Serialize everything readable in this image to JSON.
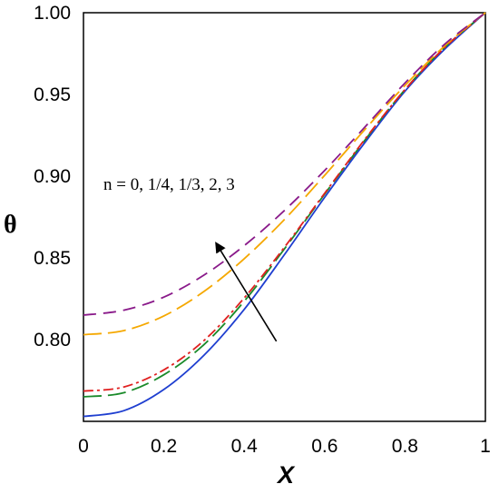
{
  "chart_data": {
    "type": "line",
    "title": "",
    "xlabel": "X",
    "ylabel": "θ",
    "xlim": [
      0,
      1
    ],
    "ylim": [
      0.75,
      1.0
    ],
    "x_ticks": [
      "0",
      "0.2",
      "0.4",
      "0.6",
      "0.8",
      "1"
    ],
    "y_ticks": [
      "0.80",
      "0.85",
      "0.90",
      "0.95",
      "1.00"
    ],
    "grid": false,
    "legend": "none",
    "annotation": {
      "text": "n = 0, 1/4, 1/3, 2, 3",
      "arrow_from": [
        0.48,
        0.799
      ],
      "arrow_to": [
        0.33,
        0.859
      ]
    },
    "series": [
      {
        "color": "#1f3fd0",
        "dash": "solid",
        "x": [
          0,
          0.1,
          0.2,
          0.3,
          0.4,
          0.5,
          0.6,
          0.7,
          0.8,
          0.9,
          1.0
        ],
        "y": [
          0.753,
          0.7565,
          0.7695,
          0.7905,
          0.8185,
          0.852,
          0.887,
          0.9205,
          0.952,
          0.978,
          1.0
        ]
      },
      {
        "color": "#1a8a2a",
        "dash": "long-dash",
        "x": [
          0,
          0.1,
          0.2,
          0.3,
          0.4,
          0.5,
          0.6,
          0.7,
          0.8,
          0.9,
          1.0
        ],
        "y": [
          0.765,
          0.7675,
          0.7785,
          0.797,
          0.8235,
          0.8555,
          0.889,
          0.922,
          0.953,
          0.979,
          1.0
        ]
      },
      {
        "color": "#e02020",
        "dash": "dash-dot",
        "x": [
          0,
          0.1,
          0.2,
          0.3,
          0.4,
          0.5,
          0.6,
          0.7,
          0.8,
          0.9,
          1.0
        ],
        "y": [
          0.7685,
          0.771,
          0.7815,
          0.7995,
          0.8255,
          0.8565,
          0.8895,
          0.9225,
          0.953,
          0.979,
          1.0
        ]
      },
      {
        "color": "#f5a800",
        "dash": "long-dash",
        "x": [
          0,
          0.1,
          0.2,
          0.3,
          0.4,
          0.5,
          0.6,
          0.7,
          0.8,
          0.9,
          1.0
        ],
        "y": [
          0.803,
          0.8055,
          0.8145,
          0.8295,
          0.8495,
          0.8735,
          0.9005,
          0.9285,
          0.9555,
          0.98,
          1.0
        ]
      },
      {
        "color": "#8a1a8a",
        "dash": "dash",
        "x": [
          0,
          0.1,
          0.2,
          0.3,
          0.4,
          0.5,
          0.6,
          0.7,
          0.8,
          0.9,
          1.0
        ],
        "y": [
          0.815,
          0.818,
          0.826,
          0.8395,
          0.8575,
          0.879,
          0.9035,
          0.93,
          0.957,
          0.981,
          1.0
        ]
      }
    ]
  }
}
